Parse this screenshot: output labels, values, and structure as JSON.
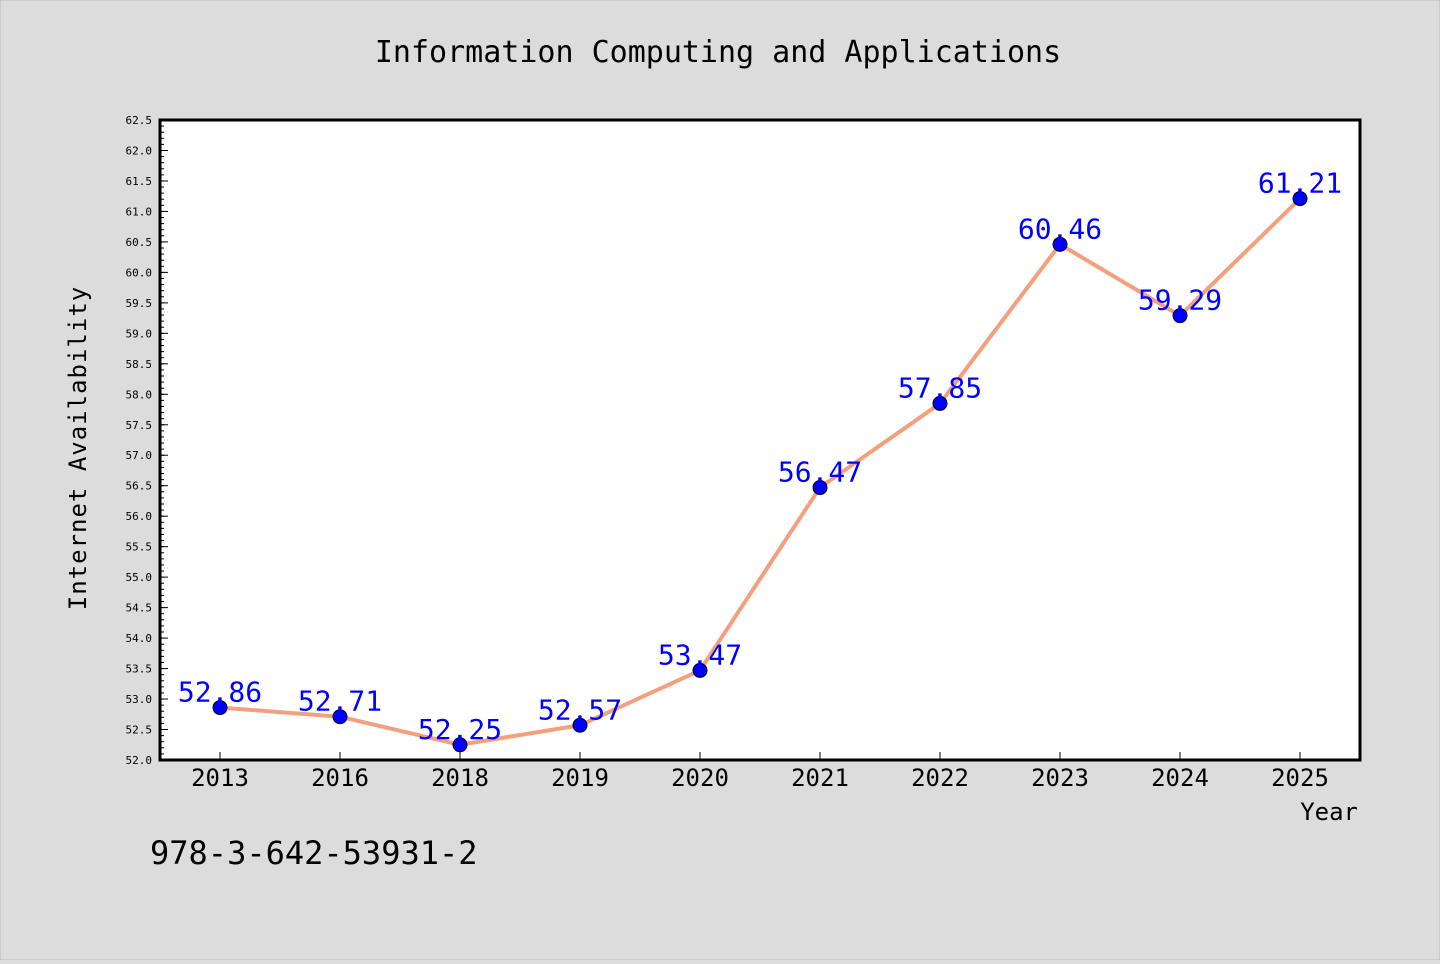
{
  "chart_data": {
    "type": "line",
    "title": "Information Computing and Applications",
    "xlabel": "Year",
    "ylabel": "Internet Availability",
    "categories": [
      "2013",
      "2016",
      "2018",
      "2019",
      "2020",
      "2021",
      "2022",
      "2023",
      "2024",
      "2025"
    ],
    "series": [
      {
        "values": [
          52.86,
          52.71,
          52.25,
          52.57,
          53.47,
          56.47,
          57.85,
          60.46,
          59.29,
          61.21
        ],
        "line_color": "#f4a07e",
        "marker_color": "#0000ff"
      }
    ],
    "data_labels": [
      "52.86",
      "52.71",
      "52.25",
      "52.57",
      "53.47",
      "56.47",
      "57.85",
      "60.46",
      "59.29",
      "61.21"
    ],
    "ylim": [
      52.0,
      62.5
    ],
    "yticks": [
      "52.0",
      "52.5",
      "53.0",
      "53.5",
      "54.0",
      "54.5",
      "55.0",
      "55.5",
      "56.0",
      "56.5",
      "57.0",
      "57.5",
      "58.0",
      "58.5",
      "59.0",
      "59.5",
      "60.0",
      "60.5",
      "61.0",
      "61.5",
      "62.0",
      "62.5"
    ],
    "grid": false,
    "label_color": "#0000ff",
    "annotation": "978-3-642-53931-2"
  }
}
